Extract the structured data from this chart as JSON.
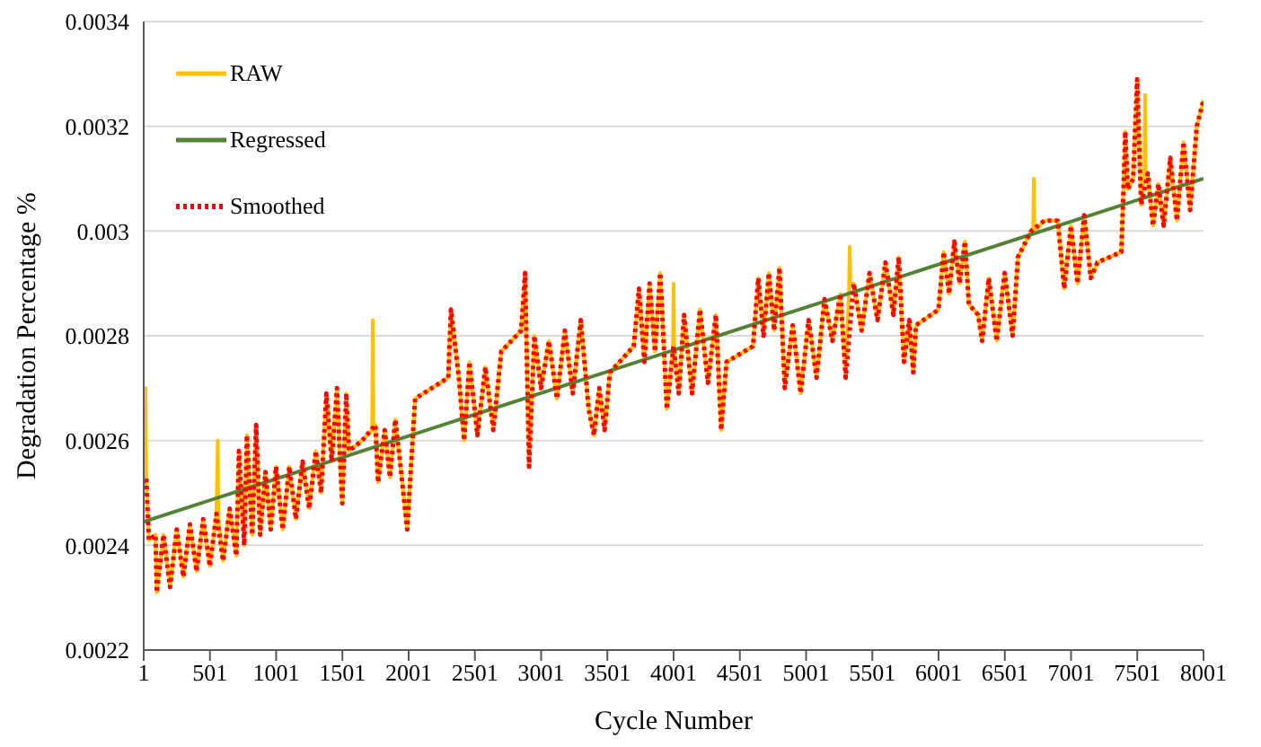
{
  "chart_data": {
    "type": "line",
    "xlabel": "Cycle Number",
    "ylabel": "Degradation Percentage %",
    "xlim": [
      1,
      8001
    ],
    "xticks": [
      1,
      501,
      1001,
      1501,
      2001,
      2501,
      3001,
      3501,
      4001,
      4501,
      5001,
      5501,
      6001,
      6501,
      7001,
      7501,
      8001
    ],
    "ylim": [
      0.0022,
      0.0034
    ],
    "yticks": [
      0.0022,
      0.0024,
      0.0026,
      0.0028,
      0.003,
      0.0032,
      0.0034
    ],
    "grid": "y",
    "legend": "top left",
    "marker": "none",
    "series": [
      {
        "name": "RAW",
        "color": "#ffc000",
        "line_style": "solid",
        "x": [
          1,
          15,
          20,
          40,
          90,
          100,
          150,
          200,
          250,
          300,
          350,
          400,
          450,
          500,
          550,
          560,
          565,
          600,
          650,
          700,
          720,
          760,
          780,
          820,
          850,
          880,
          920,
          960,
          1000,
          1050,
          1100,
          1150,
          1200,
          1250,
          1300,
          1340,
          1380,
          1420,
          1460,
          1480,
          1500,
          1530,
          1550,
          1650,
          1725,
          1730,
          1735,
          1750,
          1770,
          1820,
          1860,
          1900,
          1940,
          1990,
          2050,
          2300,
          2320,
          2380,
          2420,
          2460,
          2520,
          2580,
          2640,
          2700,
          2850,
          2880,
          2910,
          2950,
          3000,
          3060,
          3120,
          3180,
          3240,
          3300,
          3360,
          3400,
          3440,
          3480,
          3520,
          3700,
          3740,
          3780,
          3820,
          3860,
          3900,
          3950,
          3995,
          4001,
          4005,
          4040,
          4080,
          4140,
          4200,
          4260,
          4320,
          4360,
          4400,
          4600,
          4640,
          4680,
          4720,
          4760,
          4800,
          4840,
          4900,
          4960,
          5020,
          5080,
          5140,
          5200,
          5260,
          5300,
          5325,
          5330,
          5335,
          5360,
          5420,
          5480,
          5540,
          5600,
          5660,
          5700,
          5740,
          5780,
          5810,
          5830,
          6000,
          6040,
          6080,
          6120,
          6160,
          6200,
          6230,
          6300,
          6330,
          6380,
          6440,
          6500,
          6560,
          6600,
          6700,
          6715,
          6720,
          6725,
          6800,
          6900,
          6950,
          7000,
          7050,
          7100,
          7150,
          7200,
          7380,
          7400,
          7410,
          7430,
          7470,
          7500,
          7530,
          7555,
          7560,
          7565,
          7580,
          7620,
          7660,
          7700,
          7750,
          7800,
          7850,
          7900,
          7950,
          8001
        ],
        "values": [
          0.00252,
          0.0027,
          0.00253,
          0.00241,
          0.00242,
          0.00231,
          0.00242,
          0.00232,
          0.00243,
          0.00234,
          0.00244,
          0.00235,
          0.00245,
          0.00236,
          0.00246,
          0.0026,
          0.00245,
          0.00237,
          0.00247,
          0.00238,
          0.00258,
          0.0024,
          0.00261,
          0.00242,
          0.00263,
          0.00242,
          0.00254,
          0.00243,
          0.00255,
          0.00243,
          0.00255,
          0.00245,
          0.00256,
          0.00247,
          0.00258,
          0.0025,
          0.00269,
          0.00256,
          0.0027,
          0.00258,
          0.00248,
          0.00269,
          0.00258,
          0.0026,
          0.00262,
          0.00283,
          0.00262,
          0.00263,
          0.00252,
          0.00262,
          0.00253,
          0.00264,
          0.00255,
          0.00243,
          0.00268,
          0.00272,
          0.00285,
          0.00272,
          0.0026,
          0.00275,
          0.00261,
          0.00274,
          0.00262,
          0.00277,
          0.00281,
          0.00292,
          0.00255,
          0.0028,
          0.0027,
          0.00279,
          0.00268,
          0.00281,
          0.00269,
          0.00283,
          0.00266,
          0.00261,
          0.0027,
          0.00262,
          0.00273,
          0.00278,
          0.00289,
          0.00275,
          0.0029,
          0.00277,
          0.00292,
          0.00266,
          0.00277,
          0.0029,
          0.00278,
          0.00269,
          0.00284,
          0.00269,
          0.00285,
          0.00271,
          0.00284,
          0.00262,
          0.00275,
          0.00278,
          0.00291,
          0.0028,
          0.00292,
          0.00281,
          0.00293,
          0.0027,
          0.00282,
          0.00269,
          0.00283,
          0.00272,
          0.00287,
          0.00279,
          0.00288,
          0.00272,
          0.00289,
          0.00297,
          0.0029,
          0.0029,
          0.00281,
          0.00292,
          0.00283,
          0.00294,
          0.00284,
          0.00295,
          0.00275,
          0.00283,
          0.00273,
          0.00282,
          0.00285,
          0.00296,
          0.00288,
          0.00298,
          0.0029,
          0.00298,
          0.00286,
          0.00284,
          0.00279,
          0.00291,
          0.00279,
          0.00292,
          0.0028,
          0.00295,
          0.003,
          0.003,
          0.0031,
          0.003,
          0.00302,
          0.00302,
          0.00289,
          0.00301,
          0.0029,
          0.00303,
          0.00291,
          0.00294,
          0.00296,
          0.0031,
          0.00319,
          0.00308,
          0.0031,
          0.00329,
          0.00305,
          0.0031,
          0.00326,
          0.0031,
          0.00311,
          0.00301,
          0.00309,
          0.00301,
          0.00314,
          0.00302,
          0.00317,
          0.00304,
          0.0032,
          0.00325
        ]
      },
      {
        "name": "Regressed",
        "color": "#548235",
        "line_style": "solid",
        "x": [
          1,
          8001
        ],
        "values": [
          0.002445,
          0.0031
        ]
      },
      {
        "name": "Smoothed",
        "color": "#ff0000",
        "line_style": "dotted",
        "x": [
          1,
          20,
          40,
          90,
          100,
          150,
          200,
          250,
          300,
          350,
          400,
          450,
          500,
          550,
          600,
          650,
          700,
          720,
          760,
          780,
          820,
          850,
          880,
          920,
          960,
          1000,
          1050,
          1100,
          1150,
          1200,
          1250,
          1300,
          1340,
          1380,
          1420,
          1460,
          1480,
          1500,
          1530,
          1550,
          1650,
          1750,
          1770,
          1820,
          1860,
          1900,
          1940,
          1990,
          2050,
          2300,
          2320,
          2380,
          2420,
          2460,
          2520,
          2580,
          2640,
          2700,
          2850,
          2880,
          2910,
          2950,
          3000,
          3060,
          3120,
          3180,
          3240,
          3300,
          3360,
          3400,
          3440,
          3480,
          3520,
          3700,
          3740,
          3780,
          3820,
          3860,
          3900,
          3950,
          4000,
          4040,
          4080,
          4140,
          4200,
          4260,
          4320,
          4360,
          4400,
          4600,
          4640,
          4680,
          4720,
          4760,
          4800,
          4840,
          4900,
          4960,
          5020,
          5080,
          5140,
          5200,
          5260,
          5300,
          5360,
          5420,
          5480,
          5540,
          5600,
          5660,
          5700,
          5740,
          5780,
          5810,
          5830,
          6000,
          6040,
          6080,
          6120,
          6160,
          6200,
          6230,
          6300,
          6330,
          6380,
          6440,
          6500,
          6560,
          6600,
          6700,
          6800,
          6900,
          6950,
          7000,
          7050,
          7100,
          7150,
          7200,
          7380,
          7400,
          7410,
          7430,
          7470,
          7500,
          7530,
          7580,
          7620,
          7660,
          7700,
          7750,
          7800,
          7850,
          7900,
          7950,
          8001
        ],
        "values": [
          0.00252,
          0.00253,
          0.00241,
          0.00242,
          0.00231,
          0.00242,
          0.00232,
          0.00243,
          0.00234,
          0.00244,
          0.00235,
          0.00245,
          0.00236,
          0.00246,
          0.00237,
          0.00247,
          0.00238,
          0.00258,
          0.0024,
          0.00261,
          0.00242,
          0.00263,
          0.00242,
          0.00254,
          0.00243,
          0.00255,
          0.00243,
          0.00255,
          0.00245,
          0.00256,
          0.00247,
          0.00258,
          0.0025,
          0.00269,
          0.00256,
          0.0027,
          0.00258,
          0.00248,
          0.00269,
          0.00258,
          0.0026,
          0.00263,
          0.00252,
          0.00262,
          0.00253,
          0.00264,
          0.00255,
          0.00243,
          0.00268,
          0.00272,
          0.00285,
          0.00272,
          0.0026,
          0.00275,
          0.00261,
          0.00274,
          0.00262,
          0.00277,
          0.00281,
          0.00292,
          0.00255,
          0.0028,
          0.0027,
          0.00279,
          0.00268,
          0.00281,
          0.00269,
          0.00283,
          0.00266,
          0.00261,
          0.0027,
          0.00262,
          0.00273,
          0.00278,
          0.00289,
          0.00275,
          0.0029,
          0.00277,
          0.00292,
          0.00266,
          0.00278,
          0.00269,
          0.00284,
          0.00269,
          0.00285,
          0.00271,
          0.00284,
          0.00262,
          0.00275,
          0.00278,
          0.00291,
          0.0028,
          0.00292,
          0.00281,
          0.00293,
          0.0027,
          0.00282,
          0.00269,
          0.00283,
          0.00272,
          0.00287,
          0.00279,
          0.00288,
          0.00272,
          0.0029,
          0.00281,
          0.00292,
          0.00283,
          0.00294,
          0.00284,
          0.00295,
          0.00275,
          0.00283,
          0.00273,
          0.00282,
          0.00285,
          0.00296,
          0.00288,
          0.00298,
          0.0029,
          0.00298,
          0.00286,
          0.00284,
          0.00279,
          0.00291,
          0.00279,
          0.00292,
          0.0028,
          0.00295,
          0.003,
          0.00302,
          0.00302,
          0.00289,
          0.00301,
          0.0029,
          0.00303,
          0.00291,
          0.00294,
          0.00296,
          0.0031,
          0.00319,
          0.00308,
          0.0031,
          0.00329,
          0.00305,
          0.00311,
          0.00301,
          0.00309,
          0.00301,
          0.00314,
          0.00302,
          0.00317,
          0.00304,
          0.0032,
          0.00325
        ]
      }
    ]
  }
}
